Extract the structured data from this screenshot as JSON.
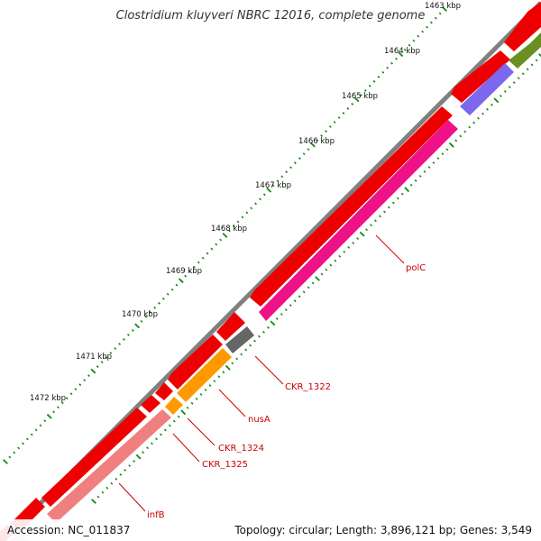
{
  "title": "Clostridium kluyveri NBRC 12016, complete genome",
  "footer": {
    "accession": "Accession: NC_011837",
    "info": "Topology: circular; Length: 3,896,121 bp; Genes: 3,549"
  },
  "colors": {
    "backbone": "#808080",
    "cds_forward": "#ee0000",
    "polC": "#ee1188",
    "nusA": "#ff9900",
    "CKR_1322": "#666666",
    "infB": "#f08080",
    "purple_gene": "#7b68ee",
    "olive_gene": "#6b8e23",
    "ticks": "#118811",
    "gene_label": "#cc0000"
  },
  "kbp_labels": [
    "1463 kbp",
    "1464 kbp",
    "1465 kbp",
    "1466 kbp",
    "1467 kbp",
    "1468 kbp",
    "1469 kbp",
    "1470 kbp",
    "1471 kbp",
    "1472 kbp"
  ],
  "gene_labels": [
    {
      "name": "polC"
    },
    {
      "name": "CKR_1322"
    },
    {
      "name": "nusA"
    },
    {
      "name": "CKR_1324"
    },
    {
      "name": "CKR_1325"
    },
    {
      "name": "infB"
    }
  ]
}
